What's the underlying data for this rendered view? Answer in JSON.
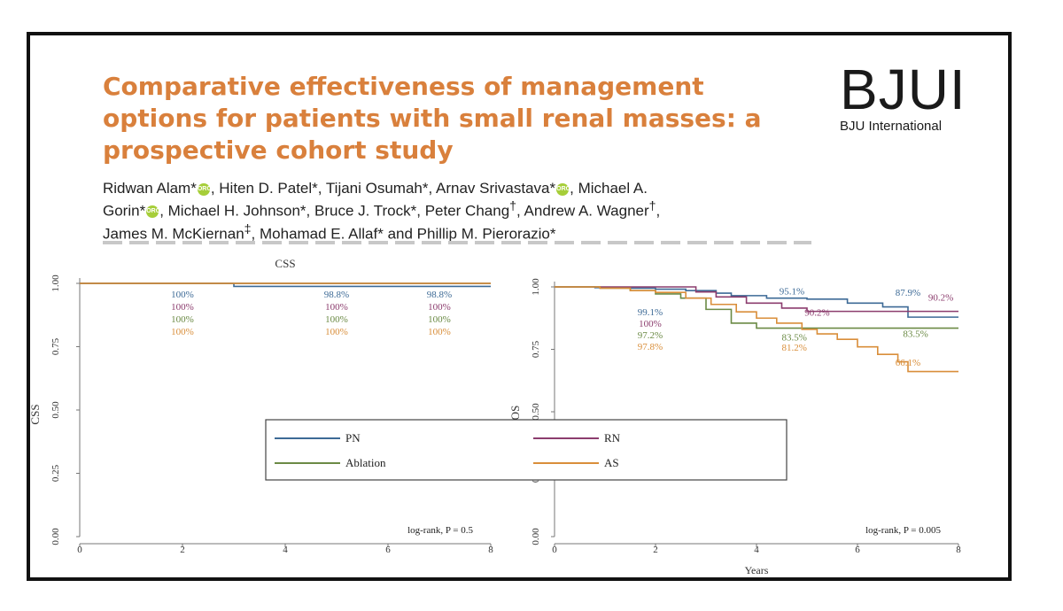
{
  "paper": {
    "title": "Comparative effectiveness of management options for patients with small renal masses: a prospective cohort study",
    "journal": {
      "logo": "BJUI",
      "name": "BJU International"
    },
    "authors_line1": [
      "Ridwan Alam*",
      "ORCID",
      ", Hiten D. Patel*, Tijani Osumah*, Arnav Srivastava*",
      "ORCID",
      ", Michael A."
    ],
    "authors_line2": [
      "Gorin*",
      "ORCID",
      ", Michael H. Johnson*, Bruce J. Trock*, Peter Chang",
      "†",
      ", Andrew A. Wagner",
      "†",
      ","
    ],
    "authors_line3": [
      "James M. McKiernan",
      "‡",
      ", Mohamad E. Allaf* and Phillip M. Pierorazio*"
    ],
    "orcid_icon": "orcid-icon"
  },
  "chart_data": [
    {
      "type": "line",
      "subtype": "kaplan-meier",
      "title": "CSS",
      "ylabel": "CSS",
      "xlabel": "",
      "x_ticks": [
        "0",
        "2",
        "4",
        "6",
        "8"
      ],
      "y_ticks": [
        "0.00",
        "0.25",
        "0.50",
        "0.75",
        "1.00"
      ],
      "xlim": [
        0,
        8
      ],
      "ylim": [
        0,
        1
      ],
      "series": [
        {
          "name": "PN",
          "color": "#3d6a96",
          "x": [
            0,
            3,
            8
          ],
          "y": [
            1.0,
            0.988,
            0.988
          ]
        },
        {
          "name": "RN",
          "color": "#8c3d6e",
          "x": [
            0,
            8
          ],
          "y": [
            1.0,
            1.0
          ]
        },
        {
          "name": "Ablation",
          "color": "#6b8a45",
          "x": [
            0,
            8
          ],
          "y": [
            1.0,
            1.0
          ]
        },
        {
          "name": "AS",
          "color": "#d98e3a",
          "x": [
            0,
            8
          ],
          "y": [
            1.0,
            1.0
          ]
        }
      ],
      "annotations": [
        {
          "x": 2,
          "labels": [
            "100%",
            "100%",
            "100%",
            "100%"
          ]
        },
        {
          "x": 5,
          "labels": [
            "98.8%",
            "100%",
            "100%",
            "100%"
          ]
        },
        {
          "x": 7,
          "labels": [
            "98.8%",
            "100%",
            "100%",
            "100%"
          ]
        }
      ],
      "note": "log-rank, P = 0.5"
    },
    {
      "type": "line",
      "subtype": "kaplan-meier",
      "title": "",
      "ylabel": "OS",
      "xlabel": "Years",
      "x_ticks": [
        "0",
        "2",
        "4",
        "6",
        "8"
      ],
      "y_ticks": [
        "0.00",
        "0.25",
        "0.50",
        "0.75",
        "1.00"
      ],
      "xlim": [
        0,
        8
      ],
      "ylim": [
        0,
        1
      ],
      "series": [
        {
          "name": "PN",
          "color": "#3d6a96",
          "x": [
            0,
            0.8,
            1.5,
            2.0,
            2.6,
            3.2,
            3.5,
            4.2,
            5.0,
            5.8,
            6.5,
            7.0,
            8.0
          ],
          "y": [
            1.0,
            0.997,
            0.995,
            0.991,
            0.985,
            0.975,
            0.965,
            0.955,
            0.951,
            0.935,
            0.92,
            0.879,
            0.879
          ]
        },
        {
          "name": "RN",
          "color": "#8c3d6e",
          "x": [
            0,
            1.0,
            2.0,
            2.8,
            3.2,
            3.8,
            4.5,
            5.0,
            5.5,
            6.5,
            8.0
          ],
          "y": [
            1.0,
            1.0,
            1.0,
            0.98,
            0.96,
            0.935,
            0.915,
            0.902,
            0.902,
            0.902,
            0.902
          ]
        },
        {
          "name": "Ablation",
          "color": "#6b8a45",
          "x": [
            0,
            0.9,
            1.5,
            2.0,
            2.5,
            3.0,
            3.5,
            4.0,
            5.0,
            8.0
          ],
          "y": [
            1.0,
            0.995,
            0.985,
            0.972,
            0.955,
            0.91,
            0.855,
            0.835,
            0.835,
            0.835
          ]
        },
        {
          "name": "AS",
          "color": "#d98e3a",
          "x": [
            0,
            0.9,
            1.5,
            2.0,
            2.6,
            3.1,
            3.6,
            4.0,
            4.4,
            4.9,
            5.2,
            5.6,
            6.0,
            6.4,
            6.8,
            7.0,
            8.0
          ],
          "y": [
            1.0,
            0.995,
            0.985,
            0.978,
            0.955,
            0.93,
            0.9,
            0.875,
            0.855,
            0.83,
            0.812,
            0.79,
            0.76,
            0.73,
            0.7,
            0.661,
            0.661
          ]
        }
      ],
      "annotations": [
        {
          "x": 2,
          "labels": [
            "99.1%",
            "100%",
            "97.2%",
            "97.8%"
          ]
        },
        {
          "x": 4.5,
          "labels": [
            "95.1%",
            "90.2%",
            "83.5%",
            "81.2%"
          ]
        },
        {
          "x": 7,
          "labels": [
            "87.9%",
            "90.2%",
            "83.5%",
            "66.1%"
          ]
        }
      ],
      "note": "log-rank, P = 0.005"
    }
  ],
  "legend": {
    "items": [
      "PN",
      "RN",
      "Ablation",
      "AS"
    ]
  }
}
